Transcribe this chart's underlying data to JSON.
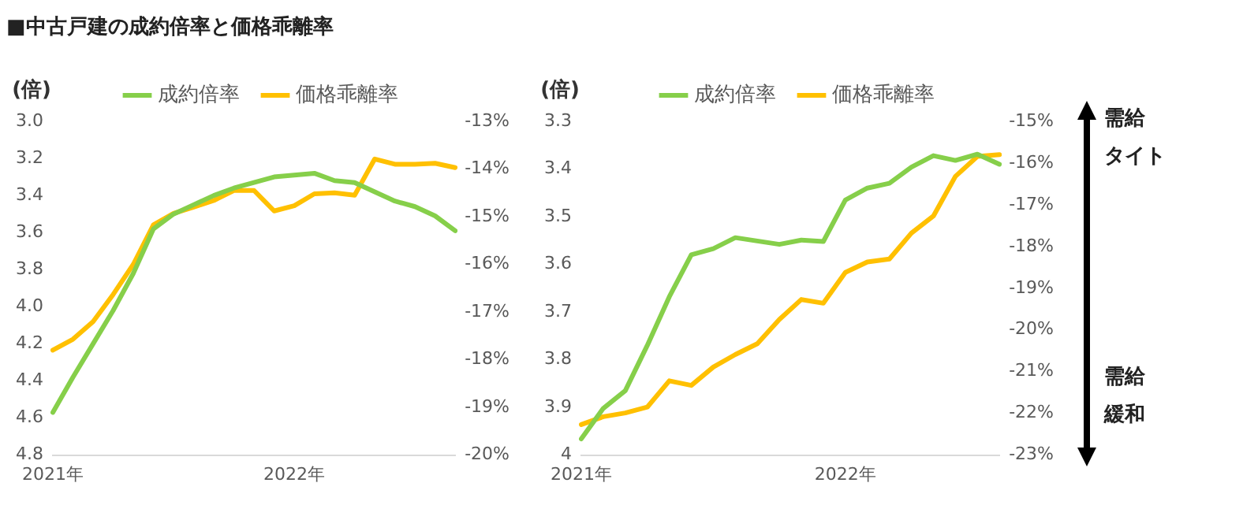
{
  "chart_data": [
    {
      "type": "line",
      "title": "■中古戸建の成約倍率と価格乖離率",
      "ylabel": "(倍)",
      "categories": [
        "2021年",
        null,
        null,
        null,
        null,
        null,
        null,
        null,
        null,
        null,
        null,
        null,
        "2022年",
        null,
        null,
        null,
        null,
        null,
        null,
        null,
        null
      ],
      "ylim": [
        4.8,
        3.0
      ],
      "yticks": [
        {
          "value": 3.0,
          "label": "3.0"
        },
        3.2,
        3.4,
        3.6,
        3.8,
        {
          "value": 4.0,
          "label": "4.0"
        },
        4.2,
        4.4,
        4.6,
        4.8
      ],
      "y2lim": [
        -20,
        -13
      ],
      "y2ticks": [
        {
          "value": -13,
          "label": "-13%"
        },
        {
          "value": -14,
          "label": "-14%"
        },
        {
          "value": -15,
          "label": "-15%"
        },
        {
          "value": -16,
          "label": "-16%"
        },
        {
          "value": -17,
          "label": "-17%"
        },
        {
          "value": -18,
          "label": "-18%"
        },
        {
          "value": -19,
          "label": "-19%"
        },
        {
          "value": -20,
          "label": "-20%"
        }
      ],
      "legend": "top",
      "marker": "none",
      "series": [
        {
          "name": "成約倍率",
          "color": "#86cf4a",
          "values": [
            4.57,
            4.38,
            4.2,
            4.02,
            3.82,
            3.58,
            3.5,
            3.45,
            3.4,
            3.36,
            3.33,
            3.3,
            3.29,
            3.28,
            3.32,
            3.33,
            3.38,
            3.43,
            3.46,
            3.51,
            3.59
          ]
        },
        {
          "name": "価格乖離率",
          "color": "#ffc000",
          "axis": "y2",
          "values": [
            -17.8,
            -17.57,
            -17.2,
            -16.63,
            -16.0,
            -15.17,
            -14.93,
            -14.8,
            -14.66,
            -14.45,
            -14.45,
            -14.88,
            -14.77,
            -14.52,
            -14.5,
            -14.55,
            -13.79,
            -13.9,
            -13.9,
            -13.88,
            -13.97
          ]
        }
      ]
    },
    {
      "type": "line",
      "ylabel": "(倍)",
      "categories": [
        "2021年",
        null,
        null,
        null,
        null,
        null,
        null,
        null,
        null,
        null,
        null,
        null,
        "2022年",
        null,
        null,
        null,
        null,
        null,
        null,
        null
      ],
      "ylim": [
        4,
        3.3
      ],
      "yticks": [
        3.3,
        3.4,
        3.5,
        3.6,
        3.7,
        3.8,
        3.9,
        4
      ],
      "y2lim": [
        -23,
        -15
      ],
      "y2ticks": [
        {
          "value": -15,
          "label": "-15%"
        },
        {
          "value": -16,
          "label": "-16%"
        },
        {
          "value": -17,
          "label": "-17%"
        },
        {
          "value": -18,
          "label": "-18%"
        },
        {
          "value": -19,
          "label": "-19%"
        },
        {
          "value": -20,
          "label": "-20%"
        },
        {
          "value": -21,
          "label": "-21%"
        },
        {
          "value": -22,
          "label": "-22%"
        },
        {
          "value": -23,
          "label": "-23%"
        }
      ],
      "legend": "top",
      "marker": "none",
      "annotations": [
        "需給",
        "タイト",
        "需給",
        "緩和"
      ],
      "series": [
        {
          "name": "成約倍率",
          "color": "#86cf4a",
          "values": [
            3.966,
            3.902,
            3.865,
            3.77,
            3.668,
            3.58,
            3.567,
            3.544,
            3.551,
            3.558,
            3.549,
            3.552,
            3.465,
            3.44,
            3.43,
            3.396,
            3.372,
            3.382,
            3.369,
            3.39
          ]
        },
        {
          "name": "価格乖離率",
          "color": "#ffc000",
          "axis": "y2",
          "values": [
            -22.27,
            -22.08,
            -21.99,
            -21.85,
            -21.22,
            -21.33,
            -20.89,
            -20.59,
            -20.33,
            -19.75,
            -19.27,
            -19.36,
            -18.62,
            -18.37,
            -18.3,
            -17.68,
            -17.27,
            -16.32,
            -15.84,
            -15.8
          ]
        }
      ]
    }
  ]
}
